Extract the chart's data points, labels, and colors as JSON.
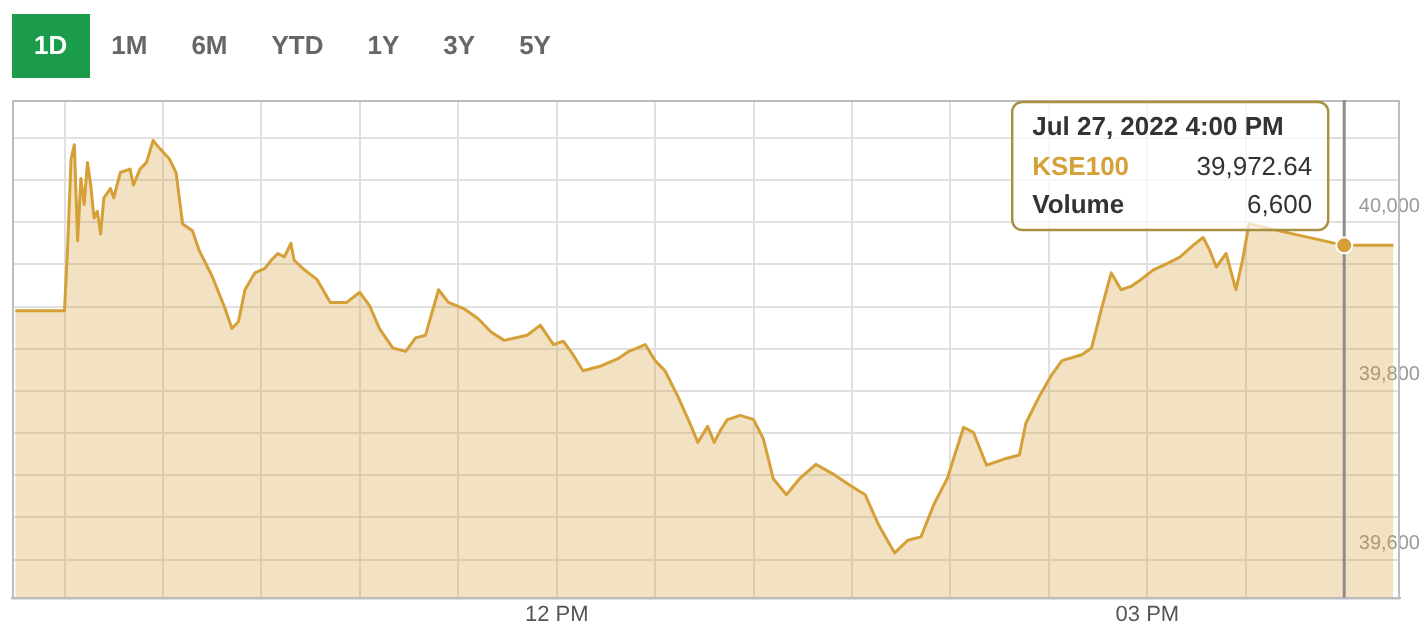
{
  "chart_data": {
    "type": "area",
    "x": [
      "2022-07-27T09:15",
      "2022-07-27T09:30",
      "2022-07-27T09:31",
      "2022-07-27T09:32",
      "2022-07-27T09:33",
      "2022-07-27T09:34",
      "2022-07-27T09:35",
      "2022-07-27T09:36",
      "2022-07-27T09:37",
      "2022-07-27T09:38",
      "2022-07-27T09:39",
      "2022-07-27T09:40",
      "2022-07-27T09:41",
      "2022-07-27T09:42",
      "2022-07-27T09:44",
      "2022-07-27T09:45",
      "2022-07-27T09:47",
      "2022-07-27T09:50",
      "2022-07-27T09:51",
      "2022-07-27T09:53",
      "2022-07-27T09:55",
      "2022-07-27T09:57",
      "2022-07-27T09:58",
      "2022-07-27T10:02",
      "2022-07-27T10:04",
      "2022-07-27T10:06",
      "2022-07-27T10:09",
      "2022-07-27T10:11",
      "2022-07-27T10:15",
      "2022-07-27T10:19",
      "2022-07-27T10:21",
      "2022-07-27T10:23",
      "2022-07-27T10:25",
      "2022-07-27T10:28",
      "2022-07-27T10:31",
      "2022-07-27T10:33",
      "2022-07-27T10:35",
      "2022-07-27T10:37",
      "2022-07-27T10:39",
      "2022-07-27T10:40",
      "2022-07-27T10:43",
      "2022-07-27T10:47",
      "2022-07-27T10:51",
      "2022-07-27T10:56",
      "2022-07-27T11:00",
      "2022-07-27T11:03",
      "2022-07-27T11:06",
      "2022-07-27T11:10",
      "2022-07-27T11:14",
      "2022-07-27T11:17",
      "2022-07-27T11:20",
      "2022-07-27T11:22",
      "2022-07-27T11:24",
      "2022-07-27T11:27",
      "2022-07-27T11:32",
      "2022-07-27T11:36",
      "2022-07-27T11:40",
      "2022-07-27T11:44",
      "2022-07-27T11:51",
      "2022-07-27T11:55",
      "2022-07-27T11:59",
      "2022-07-27T12:02",
      "2022-07-27T12:05",
      "2022-07-27T12:08",
      "2022-07-27T12:13",
      "2022-07-27T12:19",
      "2022-07-27T12:22",
      "2022-07-27T12:27",
      "2022-07-27T12:30",
      "2022-07-27T12:33",
      "2022-07-27T12:37",
      "2022-07-27T12:41",
      "2022-07-27T12:43",
      "2022-07-27T12:46",
      "2022-07-27T12:48",
      "2022-07-27T12:50",
      "2022-07-27T12:52",
      "2022-07-27T12:56",
      "2022-07-27T13:00",
      "2022-07-27T13:03",
      "2022-07-27T13:06",
      "2022-07-27T13:10",
      "2022-07-27T13:14",
      "2022-07-27T13:19",
      "2022-07-27T13:24",
      "2022-07-27T13:29",
      "2022-07-27T13:34",
      "2022-07-27T13:38",
      "2022-07-27T13:43",
      "2022-07-27T13:47",
      "2022-07-27T13:51",
      "2022-07-27T13:55",
      "2022-07-27T13:59",
      "2022-07-27T14:04",
      "2022-07-27T14:07",
      "2022-07-27T14:11",
      "2022-07-27T14:17",
      "2022-07-27T14:21",
      "2022-07-27T14:23",
      "2022-07-27T14:27",
      "2022-07-27T14:31",
      "2022-07-27T14:34",
      "2022-07-27T14:40",
      "2022-07-27T14:43",
      "2022-07-27T14:46",
      "2022-07-27T14:49",
      "2022-07-27T14:52",
      "2022-07-27T14:55",
      "2022-07-27T14:58",
      "2022-07-27T15:02",
      "2022-07-27T15:06",
      "2022-07-27T15:10",
      "2022-07-27T15:14",
      "2022-07-27T15:17",
      "2022-07-27T15:19",
      "2022-07-27T15:21",
      "2022-07-27T15:24",
      "2022-07-27T15:27",
      "2022-07-27T15:29",
      "2022-07-27T15:31",
      "2022-07-27T16:00",
      "2022-07-27T16:15"
    ],
    "series": [
      {
        "name": "KSE100",
        "color": "#d4a037",
        "values": [
          39895,
          39895,
          39975,
          40075,
          40092,
          39978,
          40052,
          40021,
          40071,
          40044,
          40005,
          40013,
          39986,
          40029,
          40040,
          40029,
          40059,
          40063,
          40044,
          40063,
          40071,
          40097,
          40092,
          40075,
          40059,
          39998,
          39990,
          39967,
          39936,
          39897,
          39874,
          39882,
          39920,
          39940,
          39945,
          39955,
          39963,
          39959,
          39975,
          39955,
          39944,
          39932,
          39905,
          39905,
          39917,
          39901,
          39874,
          39851,
          39847,
          39863,
          39866,
          39893,
          39920,
          39905,
          39897,
          39886,
          39870,
          39860,
          39866,
          39878,
          39855,
          39859,
          39843,
          39824,
          39829,
          39839,
          39847,
          39855,
          39836,
          39824,
          39793,
          39758,
          39739,
          39758,
          39739,
          39754,
          39766,
          39771,
          39766,
          39743,
          39696,
          39677,
          39696,
          39713,
          39702,
          39689,
          39677,
          39642,
          39608,
          39623,
          39627,
          39666,
          39696,
          39757,
          39751,
          39712,
          39720,
          39724,
          39762,
          39793,
          39820,
          39836,
          39843,
          39851,
          39897,
          39940,
          39920,
          39924,
          39932,
          39944,
          39951,
          39959,
          39973,
          39982,
          39967,
          39947,
          39963,
          39920,
          39955,
          39998,
          39972.64,
          39972.64
        ],
        "value_labels": [
          null,
          null,
          null,
          null,
          null,
          null,
          null,
          null,
          null,
          null,
          null,
          null,
          null,
          null,
          null,
          null,
          null,
          null,
          null,
          null,
          null,
          null,
          null,
          null,
          null,
          null,
          null,
          null,
          null,
          null,
          null,
          null,
          null,
          null,
          null,
          null,
          null,
          null,
          null,
          null,
          null,
          null,
          null,
          null,
          null,
          null,
          null,
          null,
          null,
          null,
          null,
          null,
          null,
          null,
          null,
          null,
          null,
          null,
          null,
          null,
          null,
          null,
          null,
          null,
          null,
          null,
          null,
          null,
          null,
          null,
          null,
          null,
          null,
          null,
          null,
          null,
          null,
          null,
          null,
          null,
          null,
          null,
          null,
          null,
          null,
          null,
          null,
          null,
          null,
          null,
          null,
          null,
          null,
          null,
          null,
          null,
          null,
          null,
          null,
          null,
          null,
          null,
          null,
          null,
          null,
          null,
          null,
          null,
          null,
          null,
          null,
          null,
          null,
          null,
          null,
          null,
          null,
          null,
          null,
          null,
          "39,972.64",
          null
        ]
      }
    ],
    "xlim": [
      "2022-07-27T09:14",
      "2022-07-27T16:17"
    ],
    "xticks": [
      {
        "value": "2022-07-27T09:30",
        "label": null
      },
      {
        "value": "2022-07-27T10:00",
        "label": null
      },
      {
        "value": "2022-07-27T10:30",
        "label": null
      },
      {
        "value": "2022-07-27T11:00",
        "label": null
      },
      {
        "value": "2022-07-27T11:30",
        "label": null
      },
      {
        "value": "2022-07-27T12:00",
        "label": "12 PM"
      },
      {
        "value": "2022-07-27T12:30",
        "label": null
      },
      {
        "value": "2022-07-27T13:00",
        "label": null
      },
      {
        "value": "2022-07-27T13:30",
        "label": null
      },
      {
        "value": "2022-07-27T14:00",
        "label": null
      },
      {
        "value": "2022-07-27T14:30",
        "label": null
      },
      {
        "value": "2022-07-27T15:00",
        "label": "03 PM"
      },
      {
        "value": "2022-07-27T15:30",
        "label": null
      }
    ],
    "ylim": [
      39555,
      40145
    ],
    "yticks": [
      {
        "value": 39600,
        "label": "39,600"
      },
      {
        "value": 39650,
        "label": null
      },
      {
        "value": 39700,
        "label": null
      },
      {
        "value": 39750,
        "label": null
      },
      {
        "value": 39800,
        "label": "39,800"
      },
      {
        "value": 39850,
        "label": null
      },
      {
        "value": 39900,
        "label": null
      },
      {
        "value": 39950,
        "label": null
      },
      {
        "value": 40000,
        "label": "40,000"
      },
      {
        "value": 40050,
        "label": null
      },
      {
        "value": 40100,
        "label": null
      }
    ],
    "grid": true,
    "legend": false,
    "marker": "none",
    "ref_lines": [
      {
        "axis": "x",
        "value": "2022-07-27T16:00",
        "color": "#8c8c8c"
      }
    ],
    "annotations": [
      "1D",
      "1M",
      "6M",
      "YTD",
      "1Y",
      "3Y",
      "5Y",
      "Jul 27, 2022 4:00 PM",
      "Volume",
      "6,600"
    ]
  }
}
